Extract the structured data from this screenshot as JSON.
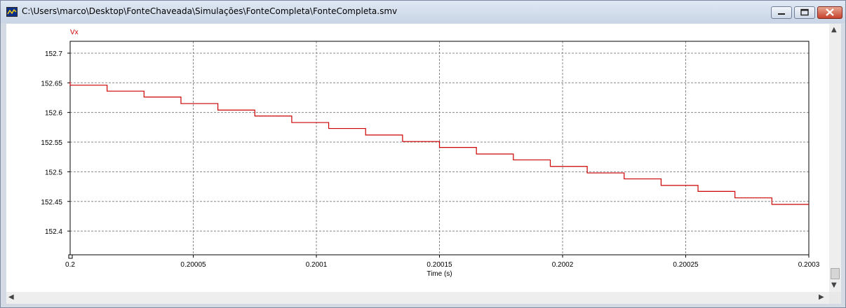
{
  "window": {
    "title": "C:\\Users\\marco\\Desktop\\FonteChaveada\\Simulações\\FonteCompleta\\FonteCompleta.smv",
    "colors": {
      "series": "#cc0000",
      "grid": "#888888",
      "frame": "#000000"
    }
  },
  "scrollbars": {
    "up": "▲",
    "down": "▼",
    "left": "◀",
    "right": "▶"
  },
  "chart_data": {
    "type": "line",
    "xlabel": "Time (s)",
    "ylabel": "",
    "xlim": [
      0.2,
      0.2003
    ],
    "ylim": [
      152.36,
      152.72
    ],
    "x_tick_values": [
      0.2,
      0.20005,
      0.2001,
      0.20015,
      0.2002,
      0.20025,
      0.2003
    ],
    "x_tick_labels": [
      "0.2",
      "0.20005",
      "0.2001",
      "0.20015",
      "0.2002",
      "0.20025",
      "0.2003"
    ],
    "y_tick_values": [
      152.4,
      152.45,
      152.5,
      152.55,
      152.6,
      152.65,
      152.7
    ],
    "y_tick_labels": [
      "152.4",
      "152.45",
      "152.5",
      "152.55",
      "152.6",
      "152.65",
      "152.7"
    ],
    "grid": true,
    "series": [
      {
        "name": "Vx",
        "color": "#cc0000",
        "steps": [
          {
            "x": 0.2,
            "y": 152.646
          },
          {
            "x": 0.200015,
            "y": 152.636
          },
          {
            "x": 0.20003,
            "y": 152.626
          },
          {
            "x": 0.200045,
            "y": 152.615
          },
          {
            "x": 0.20006,
            "y": 152.604
          },
          {
            "x": 0.200075,
            "y": 152.594
          },
          {
            "x": 0.20009,
            "y": 152.583
          },
          {
            "x": 0.200105,
            "y": 152.573
          },
          {
            "x": 0.20012,
            "y": 152.562
          },
          {
            "x": 0.200135,
            "y": 152.551
          },
          {
            "x": 0.20015,
            "y": 152.541
          },
          {
            "x": 0.200165,
            "y": 152.53
          },
          {
            "x": 0.20018,
            "y": 152.52
          },
          {
            "x": 0.200195,
            "y": 152.509
          },
          {
            "x": 0.20021,
            "y": 152.498
          },
          {
            "x": 0.200225,
            "y": 152.488
          },
          {
            "x": 0.20024,
            "y": 152.477
          },
          {
            "x": 0.200255,
            "y": 152.467
          },
          {
            "x": 0.20027,
            "y": 152.456
          },
          {
            "x": 0.200285,
            "y": 152.445
          },
          {
            "x": 0.2003,
            "y": 152.445
          }
        ]
      }
    ]
  }
}
